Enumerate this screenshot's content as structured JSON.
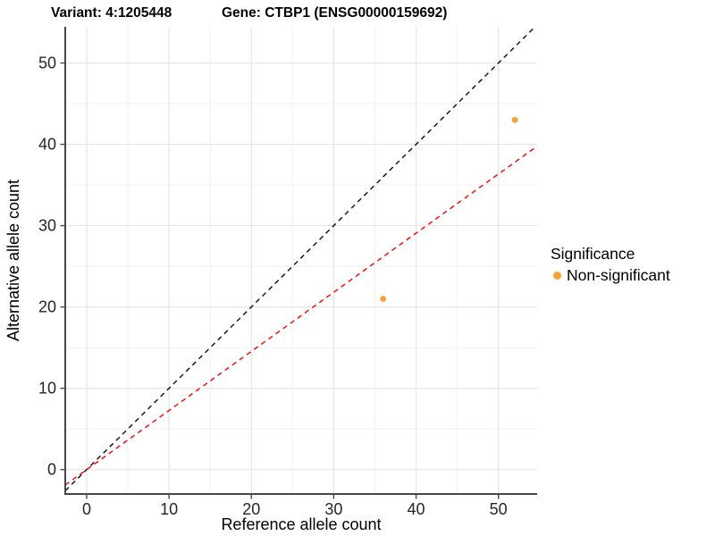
{
  "titles": {
    "variant": "Variant: 4:1205448",
    "gene": "Gene: CTBP1 (ENSG00000159692)"
  },
  "chart_data": {
    "type": "scatter",
    "title": "Variant: 4:1205448 — Gene: CTBP1 (ENSG00000159692)",
    "xlabel": "Reference allele count",
    "ylabel": "Alternative allele count",
    "xlim": [
      -2.6,
      54.7
    ],
    "ylim": [
      -3.0,
      54.45
    ],
    "x_ticks": [
      0,
      10,
      20,
      30,
      40,
      50
    ],
    "y_ticks": [
      0,
      10,
      20,
      30,
      40,
      50
    ],
    "grid": true,
    "points": [
      {
        "x": 52,
        "y": 43,
        "significance": "Non-significant"
      },
      {
        "x": 36,
        "y": 21,
        "significance": "Non-significant"
      }
    ],
    "lines": [
      {
        "name": "identity",
        "slope": 1.0,
        "intercept": 0,
        "color": "#1a1a1a",
        "style": "dashed"
      },
      {
        "name": "expected-ratio",
        "slope": 0.727,
        "intercept": 0,
        "color": "#f50f0f",
        "style": "dashed"
      }
    ],
    "legend": {
      "title": "Significance",
      "position": "right",
      "items": [
        {
          "label": "Non-significant",
          "color": "#f8a03c"
        }
      ]
    }
  },
  "colors": {
    "point": "#f8a03c",
    "identity_line": "#1a1a1a",
    "ratio_line": "#f50f0f",
    "grid_major": "#e6e6e6",
    "grid_minor": "#f2f2f2",
    "axis_line": "#474747",
    "tick_label": "#262626",
    "axis_title": "#000000"
  }
}
